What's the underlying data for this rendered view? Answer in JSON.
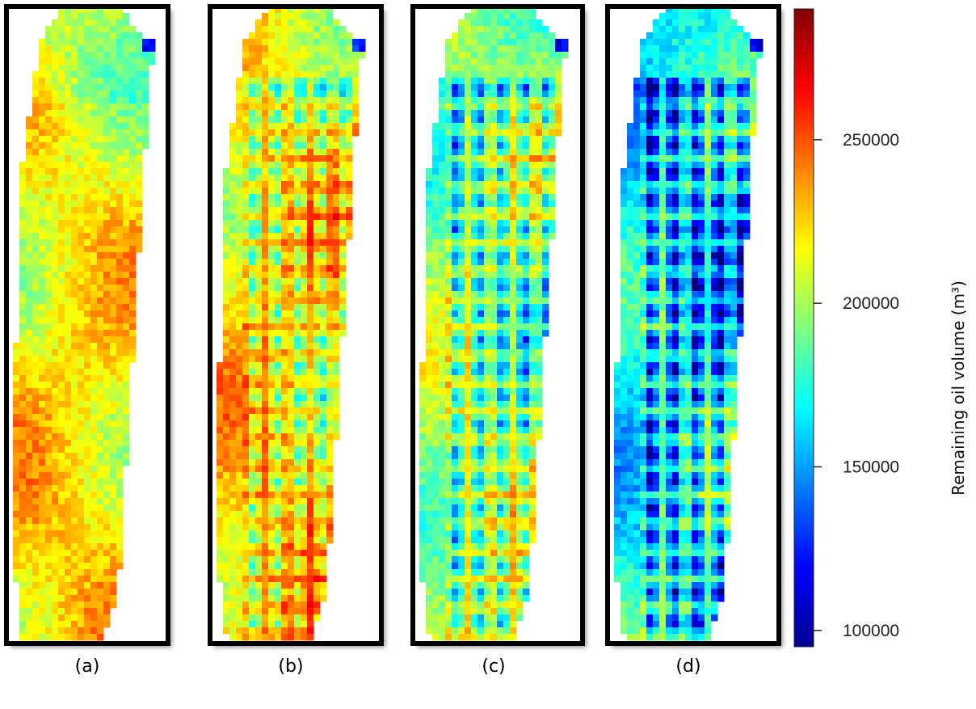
{
  "chart_data": {
    "type": "heatmap",
    "panels": [
      {
        "label": "(a)",
        "wells": false,
        "base": 0.64,
        "water_sweep": 0.0
      },
      {
        "label": "(b)",
        "wells": true,
        "base": 0.72,
        "water_sweep": 0.55
      },
      {
        "label": "(c)",
        "wells": true,
        "base": 0.6,
        "water_sweep": 0.7
      },
      {
        "label": "(d)",
        "wells": true,
        "base": 0.46,
        "water_sweep": 0.85
      }
    ],
    "well_grid": {
      "columns": 5,
      "rows": 20
    },
    "colorbar": {
      "title": "Remaining oil volume (m³)",
      "min": 95000,
      "max": 290000,
      "ticks": [
        100000,
        150000,
        200000,
        250000
      ],
      "tick_labels": [
        "100000",
        "150000",
        "200000",
        "250000"
      ],
      "colormap": "jet"
    }
  },
  "colors": {
    "frame": "#000000",
    "shadow": "#9a9a9a"
  }
}
